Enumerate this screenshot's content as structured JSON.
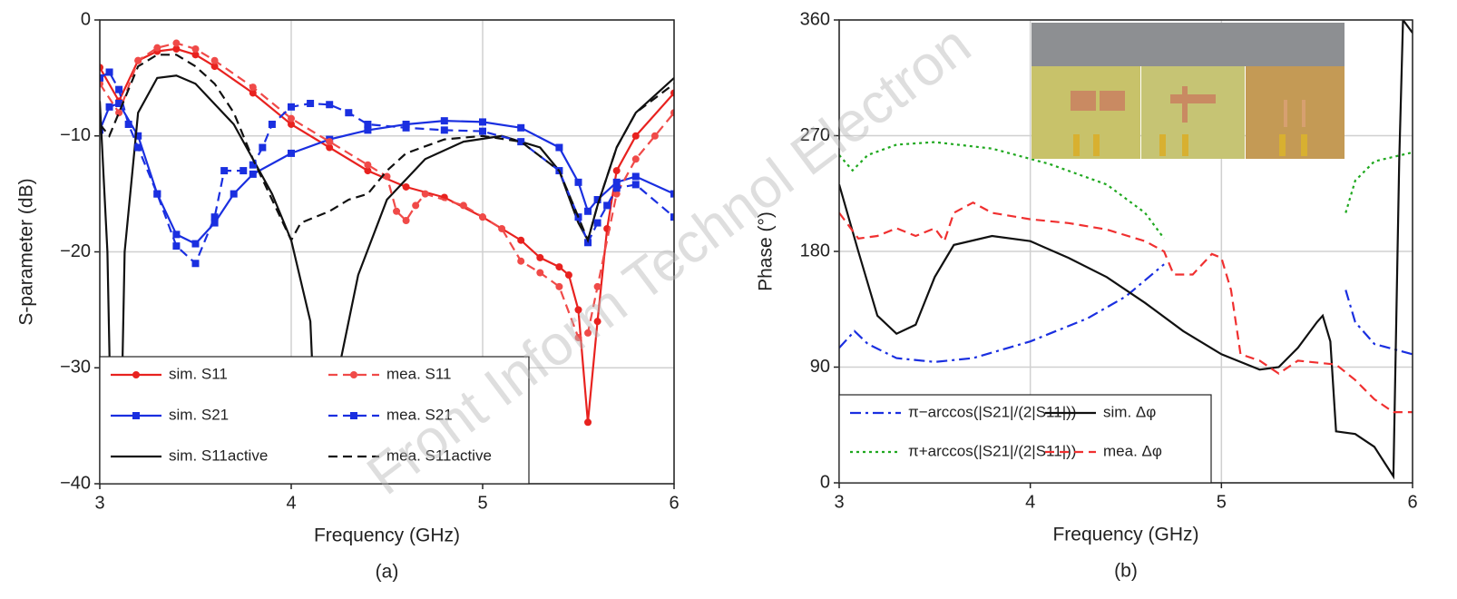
{
  "watermark": "Front Inform Technol Electron",
  "chart_data": [
    {
      "type": "line",
      "caption": "(a)",
      "xlabel": "Frequency (GHz)",
      "ylabel": "S-parameter (dB)",
      "xlim": [
        3,
        6
      ],
      "xticks": [
        3,
        4,
        5,
        6
      ],
      "ylim": [
        -40,
        0
      ],
      "yticks": [
        {
          "value": -40,
          "label": "−40"
        },
        {
          "value": -30,
          "label": "−30"
        },
        {
          "value": -20,
          "label": "−20"
        },
        {
          "value": -10,
          "label": "−10"
        },
        0
      ],
      "grid": true,
      "legend": "lower left",
      "series": [
        {
          "name": "sim. S11",
          "color": "#e8221f",
          "dash": "solid",
          "marker": "circle",
          "x": [
            3.0,
            3.1,
            3.2,
            3.3,
            3.4,
            3.5,
            3.6,
            3.8,
            4.0,
            4.2,
            4.4,
            4.6,
            4.8,
            5.0,
            5.2,
            5.3,
            5.4,
            5.45,
            5.5,
            5.55,
            5.6,
            5.65,
            5.7,
            5.8,
            6.0
          ],
          "values": [
            -4.1,
            -7,
            -3.5,
            -2.7,
            -2.5,
            -3,
            -4,
            -6.3,
            -9,
            -11,
            -13,
            -14.4,
            -15.3,
            -17,
            -19,
            -20.5,
            -21.3,
            -22,
            -25,
            -34.7,
            -26,
            -18,
            -13,
            -10,
            -6.3
          ]
        },
        {
          "name": "sim. S21",
          "color": "#1a2fe0",
          "dash": "solid",
          "marker": "square",
          "x": [
            3.0,
            3.05,
            3.1,
            3.2,
            3.3,
            3.4,
            3.5,
            3.6,
            3.7,
            3.8,
            4.0,
            4.2,
            4.4,
            4.6,
            4.8,
            5.0,
            5.2,
            5.4,
            5.5,
            5.55,
            5.6,
            5.7,
            5.8,
            6.0
          ],
          "values": [
            -9.5,
            -7.5,
            -7.2,
            -10,
            -15,
            -18.5,
            -19.3,
            -17.5,
            -15,
            -13.3,
            -11.5,
            -10.3,
            -9.5,
            -9,
            -8.7,
            -8.8,
            -9.3,
            -11,
            -14,
            -16.5,
            -15.5,
            -14,
            -13.5,
            -15
          ]
        },
        {
          "name": "sim. S11active",
          "color": "#111111",
          "dash": "solid",
          "marker": "none",
          "x": [
            3.0,
            3.04,
            3.07,
            3.1,
            3.13,
            3.2,
            3.3,
            3.4,
            3.5,
            3.7,
            3.9,
            4.0,
            4.1,
            4.15,
            4.2,
            4.25,
            4.35,
            4.5,
            4.7,
            4.9,
            5.1,
            5.3,
            5.4,
            5.5,
            5.55,
            5.6,
            5.7,
            5.8,
            6.0
          ],
          "values": [
            -7,
            -20,
            -45,
            -45,
            -20,
            -8,
            -5,
            -4.8,
            -5.5,
            -9,
            -15,
            -19,
            -26,
            -45,
            -45,
            -30,
            -22,
            -15.5,
            -12,
            -10.5,
            -10,
            -11,
            -13,
            -17.5,
            -19,
            -16,
            -11,
            -8,
            -5
          ]
        },
        {
          "name": "mea. S11",
          "color": "#f04a48",
          "dash": "dashed",
          "marker": "circle",
          "x": [
            3.0,
            3.1,
            3.2,
            3.3,
            3.4,
            3.5,
            3.6,
            3.8,
            4.0,
            4.2,
            4.4,
            4.5,
            4.55,
            4.6,
            4.65,
            4.7,
            4.9,
            5.0,
            5.1,
            5.2,
            5.3,
            5.4,
            5.5,
            5.55,
            5.6,
            5.7,
            5.8,
            5.9,
            6.0
          ],
          "values": [
            -5.5,
            -8,
            -3.5,
            -2.4,
            -2,
            -2.5,
            -3.5,
            -5.8,
            -8.5,
            -10.5,
            -12.5,
            -13.5,
            -16.5,
            -17.3,
            -16,
            -15,
            -16,
            -17,
            -18,
            -20.8,
            -21.8,
            -23,
            -27.4,
            -27,
            -23,
            -15,
            -12,
            -10,
            -8
          ]
        },
        {
          "name": "mea. S21",
          "color": "#1a2fe0",
          "dash": "dashed",
          "marker": "square",
          "x": [
            3.0,
            3.05,
            3.1,
            3.15,
            3.2,
            3.3,
            3.4,
            3.5,
            3.6,
            3.65,
            3.75,
            3.8,
            3.85,
            3.9,
            4.0,
            4.1,
            4.2,
            4.3,
            4.4,
            4.6,
            4.8,
            5.0,
            5.2,
            5.4,
            5.5,
            5.55,
            5.6,
            5.65,
            5.7,
            5.8,
            6.0
          ],
          "values": [
            -5,
            -4.5,
            -6,
            -9,
            -11,
            -15,
            -19.5,
            -21,
            -17,
            -13,
            -13,
            -12.5,
            -11,
            -9,
            -7.5,
            -7.2,
            -7.3,
            -8,
            -9,
            -9.3,
            -9.5,
            -9.6,
            -10.5,
            -13,
            -17,
            -19.2,
            -17.5,
            -16,
            -14.5,
            -14.2,
            -17
          ]
        },
        {
          "name": "mea. S11active",
          "color": "#111111",
          "dash": "dashed",
          "marker": "none",
          "x": [
            3.0,
            3.05,
            3.1,
            3.2,
            3.3,
            3.4,
            3.5,
            3.6,
            3.7,
            3.8,
            3.9,
            4.0,
            4.05,
            4.2,
            4.3,
            4.4,
            4.5,
            4.6,
            4.8,
            5.0,
            5.2,
            5.4,
            5.5,
            5.55,
            5.6,
            5.7,
            5.8,
            6.0
          ],
          "values": [
            -9,
            -10,
            -8,
            -4,
            -3,
            -3,
            -4,
            -5.5,
            -8,
            -12,
            -15.5,
            -19,
            -17.5,
            -16.5,
            -15.5,
            -15,
            -13,
            -11.5,
            -10.3,
            -10,
            -10.5,
            -13,
            -17,
            -19,
            -16,
            -11,
            -8,
            -5.5
          ]
        }
      ]
    },
    {
      "type": "line",
      "caption": "(b)",
      "xlabel": "Frequency (GHz)",
      "ylabel": "Phase (°)",
      "xlim": [
        3,
        6
      ],
      "xticks": [
        3,
        4,
        5,
        6
      ],
      "ylim": [
        0,
        360
      ],
      "yticks": [
        0,
        90,
        180,
        270,
        360
      ],
      "grid": true,
      "legend": "lower left",
      "series": [
        {
          "name": "π−arccos(|S21|/(2|S11|))",
          "color": "#1a2fe0",
          "dash": "dashdot",
          "marker": "none",
          "x": [
            3.0,
            3.08,
            3.15,
            3.3,
            3.5,
            3.7,
            4.0,
            4.3,
            4.5,
            4.7,
            5.2,
            5.65,
            5.7,
            5.8,
            6.0
          ],
          "values": [
            105,
            118,
            108,
            97,
            94,
            97,
            110,
            128,
            145,
            170,
            null,
            150,
            125,
            108,
            100
          ]
        },
        {
          "name": "π+arccos(|S21|/(2|S11|))",
          "color": "#1fa81f",
          "dash": "dotted",
          "marker": "none",
          "x": [
            3.0,
            3.07,
            3.15,
            3.3,
            3.5,
            3.8,
            4.1,
            4.4,
            4.6,
            4.7,
            5.2,
            5.65,
            5.7,
            5.8,
            6.0
          ],
          "values": [
            255,
            243,
            255,
            263,
            265,
            260,
            248,
            232,
            210,
            190,
            null,
            210,
            235,
            250,
            257
          ]
        },
        {
          "name": "sim. Δφ",
          "color": "#111111",
          "dash": "solid",
          "marker": "none",
          "x": [
            3.0,
            3.1,
            3.2,
            3.3,
            3.4,
            3.5,
            3.6,
            3.8,
            4.0,
            4.2,
            4.4,
            4.6,
            4.8,
            5.0,
            5.2,
            5.3,
            5.4,
            5.5,
            5.53,
            5.57,
            5.6,
            5.7,
            5.8,
            5.9,
            5.93,
            5.95,
            6.0
          ],
          "values": [
            232,
            180,
            130,
            116,
            123,
            160,
            185,
            192,
            188,
            175,
            160,
            140,
            118,
            100,
            88,
            90,
            105,
            125,
            130,
            110,
            40,
            38,
            28,
            5,
            250,
            360,
            350
          ]
        },
        {
          "name": "mea. Δφ",
          "color": "#f03030",
          "dash": "dashed",
          "marker": "none",
          "x": [
            3.0,
            3.1,
            3.2,
            3.3,
            3.4,
            3.5,
            3.55,
            3.6,
            3.7,
            3.8,
            4.0,
            4.2,
            4.4,
            4.6,
            4.7,
            4.75,
            4.85,
            4.95,
            5.0,
            5.05,
            5.1,
            5.2,
            5.3,
            5.4,
            5.6,
            5.7,
            5.8,
            5.9,
            6.0
          ],
          "values": [
            210,
            190,
            192,
            198,
            192,
            198,
            188,
            210,
            218,
            210,
            205,
            202,
            197,
            188,
            180,
            162,
            162,
            178,
            175,
            150,
            100,
            95,
            85,
            95,
            92,
            80,
            65,
            55,
            55
          ]
        }
      ]
    }
  ]
}
